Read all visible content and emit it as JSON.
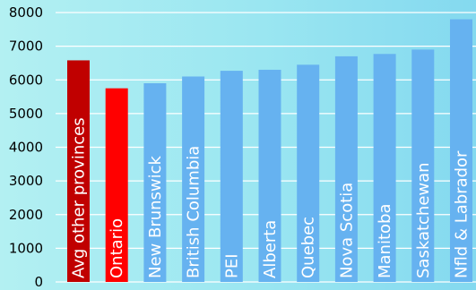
{
  "chart_data": {
    "type": "bar",
    "title": "",
    "xlabel": "",
    "ylabel": "",
    "ylim": [
      0,
      8000
    ],
    "yticks": [
      0,
      1000,
      2000,
      3000,
      4000,
      5000,
      6000,
      7000,
      8000
    ],
    "grid": true,
    "legend": "none",
    "categories": [
      "Avg other provinces",
      "Ontario",
      "New Brunswick",
      "British Columbia",
      "PEI",
      "Alberta",
      "Quebec",
      "Nova Scotia",
      "Manitoba",
      "Saskatchewan",
      "Nfld & Labrador"
    ],
    "values": [
      6580,
      5750,
      5900,
      6100,
      6270,
      6300,
      6450,
      6700,
      6770,
      6900,
      7800
    ],
    "bar_colors": [
      "#c00000",
      "#ff0000",
      "#66b2f0",
      "#66b2f0",
      "#66b2f0",
      "#66b2f0",
      "#66b2f0",
      "#66b2f0",
      "#66b2f0",
      "#66b2f0",
      "#66b2f0"
    ],
    "grid_color": "#ffffff",
    "label_color": "#ffffff"
  }
}
